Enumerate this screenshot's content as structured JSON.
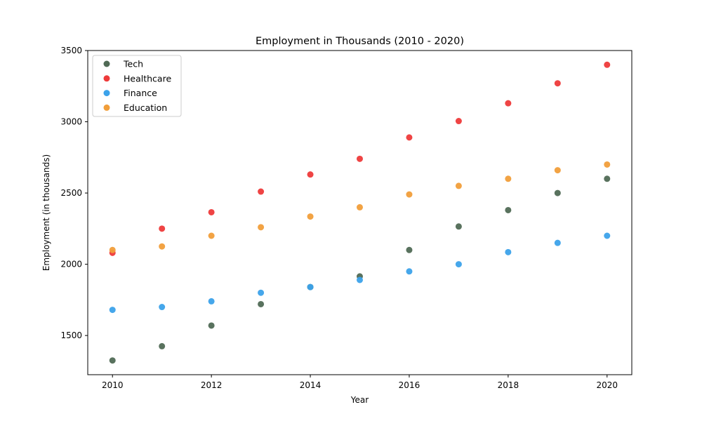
{
  "chart_data": {
    "type": "scatter",
    "title": "Employment in Thousands (2010 - 2020)",
    "xlabel": "Year",
    "ylabel": "Employment (in thousands)",
    "x": [
      2010,
      2011,
      2012,
      2013,
      2014,
      2015,
      2016,
      2017,
      2018,
      2019,
      2020
    ],
    "xlim": [
      2009.5,
      2020.5
    ],
    "ylim": [
      1225,
      3500
    ],
    "xticks": [
      2010,
      2012,
      2014,
      2016,
      2018,
      2020
    ],
    "yticks": [
      1500,
      2000,
      2500,
      3000,
      3500
    ],
    "grid": false,
    "legend_position": "top-left",
    "series": [
      {
        "name": "Tech",
        "color": "#506a55",
        "values": [
          1325,
          1425,
          1570,
          1720,
          1840,
          1915,
          2100,
          2265,
          2380,
          2500,
          2600
        ]
      },
      {
        "name": "Healthcare",
        "color": "#ee3a3a",
        "values": [
          2080,
          2250,
          2365,
          2510,
          2630,
          2740,
          2890,
          3005,
          3130,
          3270,
          3400
        ]
      },
      {
        "name": "Finance",
        "color": "#3ca2ea",
        "values": [
          1680,
          1700,
          1740,
          1800,
          1840,
          1890,
          1950,
          2000,
          2085,
          2150,
          2200
        ]
      },
      {
        "name": "Education",
        "color": "#f19e3a",
        "values": [
          2100,
          2125,
          2200,
          2260,
          2335,
          2400,
          2490,
          2550,
          2600,
          2660,
          2700
        ]
      }
    ]
  }
}
